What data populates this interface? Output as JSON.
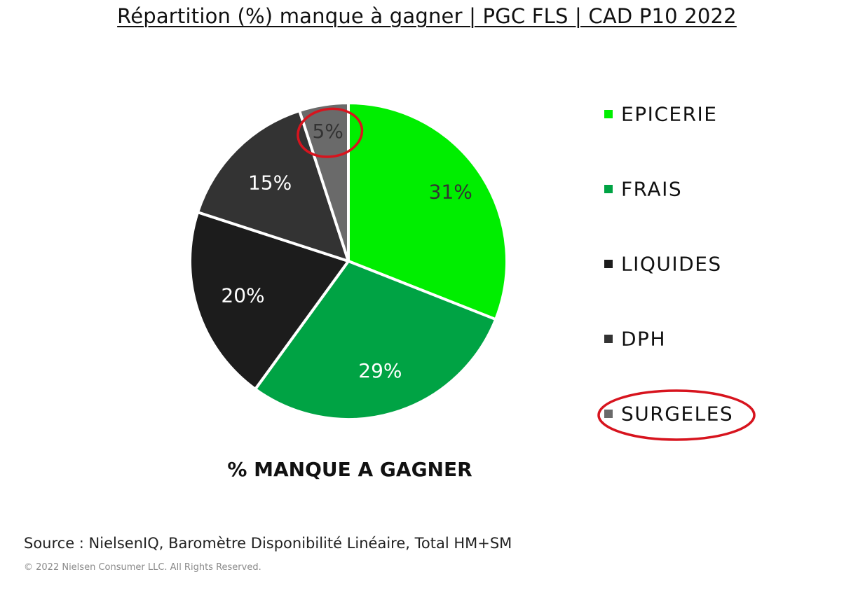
{
  "chart_data": {
    "type": "pie",
    "title": "Répartition (%) manque à gagner | PGC FLS | CAD P10 2022",
    "xlabel": "% MANQUE A GAGNER",
    "legend_position": "right",
    "start": "top",
    "direction": "clockwise",
    "slices": [
      {
        "label": "EPICERIE",
        "value": 31,
        "display": "31%",
        "color": "#00EE00",
        "label_color": "#333333"
      },
      {
        "label": "FRAIS",
        "value": 29,
        "display": "29%",
        "color": "#00A344",
        "label_color": "#ffffff"
      },
      {
        "label": "LIQUIDES",
        "value": 20,
        "display": "20%",
        "color": "#1C1C1C",
        "label_color": "#ffffff"
      },
      {
        "label": "DPH",
        "value": 15,
        "display": "15%",
        "color": "#333333",
        "label_color": "#ffffff"
      },
      {
        "label": "SURGELES",
        "value": 5,
        "display": "5%",
        "color": "#6A6A6A",
        "label_color": "#333333"
      }
    ],
    "annotations": [
      {
        "type": "circle",
        "target": "slice",
        "index": 4,
        "color": "#D7141E"
      },
      {
        "type": "circle",
        "target": "legend",
        "index": 4,
        "color": "#D7141E"
      }
    ]
  },
  "footer": {
    "source": "Source : NielsenIQ, Baromètre Disponibilité Linéaire, Total HM+SM",
    "copyright": "© 2022 Nielsen Consumer LLC. All Rights Reserved."
  }
}
